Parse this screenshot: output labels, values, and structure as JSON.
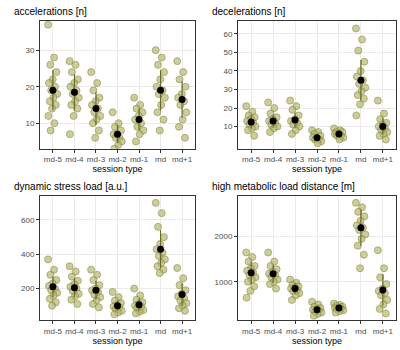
{
  "chart_data": [
    {
      "type": "scatter",
      "title": "accelerations [n]",
      "x_label": "session type",
      "categories": [
        "md-5",
        "md-4",
        "md-3",
        "md-2",
        "md-1",
        "md",
        "md+1"
      ],
      "values": [
        [
          37,
          28,
          26,
          24,
          22,
          21,
          20,
          19,
          18,
          17,
          16,
          15,
          14,
          12,
          10,
          8
        ],
        [
          27,
          26,
          24,
          22,
          21,
          20,
          19,
          18,
          17,
          16,
          15,
          14,
          12,
          7
        ],
        [
          24,
          21,
          19,
          17,
          16,
          15,
          14,
          13,
          12,
          11,
          10,
          8,
          6
        ],
        [
          13,
          10,
          9,
          8,
          7,
          7,
          6,
          6,
          5,
          4,
          3
        ],
        [
          17,
          15,
          14,
          13,
          12,
          11,
          10,
          9,
          8,
          7,
          5
        ],
        [
          30,
          28,
          26,
          24,
          22,
          20,
          19,
          18,
          17,
          15,
          13,
          11,
          8
        ],
        [
          27,
          24,
          22,
          20,
          18,
          17,
          16,
          15,
          13,
          11,
          9,
          6
        ]
      ],
      "mean": [
        19,
        18.5,
        14,
        7,
        11,
        19,
        16.5
      ],
      "sd": [
        5.5,
        5,
        4.5,
        2.5,
        3,
        5.5,
        5
      ],
      "color": "#b8b870",
      "ylim": [
        3,
        38
      ],
      "yticks": [
        10,
        20,
        30
      ],
      "grid": true
    },
    {
      "type": "scatter",
      "title": "decelerations [n]",
      "x_label": "session type",
      "categories": [
        "md-5",
        "md-4",
        "md-3",
        "md-2",
        "md-1",
        "md",
        "md+1"
      ],
      "values": [
        [
          21,
          18,
          16,
          15,
          14,
          13,
          12,
          11,
          10,
          9,
          8,
          5
        ],
        [
          23,
          20,
          17,
          15,
          14,
          13,
          12,
          11,
          10,
          9,
          7
        ],
        [
          24,
          21,
          19,
          16,
          14,
          13,
          12,
          11,
          10,
          8,
          6
        ],
        [
          8,
          7,
          6,
          5,
          4,
          4,
          3,
          3,
          2,
          1
        ],
        [
          9,
          8,
          7,
          7,
          6,
          6,
          5,
          5,
          4,
          3
        ],
        [
          63,
          57,
          51,
          45,
          40,
          37,
          35,
          33,
          31,
          29,
          27,
          25,
          22,
          16
        ],
        [
          24,
          17,
          14,
          12,
          11,
          10,
          9,
          8,
          7,
          6,
          5,
          3
        ]
      ],
      "mean": [
        12.5,
        13,
        13.5,
        4,
        6,
        35,
        10
      ],
      "sd": [
        3.5,
        3.5,
        4,
        1.8,
        1.5,
        11,
        4.5
      ],
      "color": "#b8b870",
      "ylim": [
        -2,
        67
      ],
      "yticks": [
        10,
        20,
        30,
        40,
        50,
        60
      ],
      "grid": true
    },
    {
      "type": "scatter",
      "title": "dynamic stress load [a.u.]",
      "x_label": "session type",
      "categories": [
        "md-5",
        "md-4",
        "md-3",
        "md-2",
        "md-1",
        "md",
        "md+1"
      ],
      "values": [
        [
          370,
          310,
          280,
          250,
          230,
          215,
          200,
          190,
          175,
          160,
          140,
          120,
          100
        ],
        [
          330,
          300,
          270,
          245,
          225,
          210,
          200,
          185,
          170,
          155,
          135,
          110
        ],
        [
          310,
          280,
          250,
          220,
          200,
          190,
          180,
          165,
          150,
          130,
          110,
          90
        ],
        [
          180,
          150,
          130,
          115,
          105,
          95,
          90,
          80,
          70,
          60,
          50
        ],
        [
          200,
          160,
          135,
          120,
          110,
          100,
          95,
          85,
          75,
          65,
          55
        ],
        [
          700,
          640,
          560,
          500,
          460,
          430,
          410,
          390,
          370,
          350,
          330,
          310,
          290
        ],
        [
          320,
          260,
          220,
          190,
          170,
          155,
          145,
          130,
          115,
          100,
          85,
          70
        ]
      ],
      "mean": [
        210,
        205,
        190,
        100,
        105,
        430,
        165
      ],
      "sd": [
        60,
        55,
        55,
        30,
        35,
        110,
        65
      ],
      "color": "#b8b870",
      "ylim": [
        15,
        740
      ],
      "yticks": [
        200,
        400,
        600
      ],
      "grid": true
    },
    {
      "type": "scatter",
      "title": "high metabolic load distance [m]",
      "x_label": "session type",
      "categories": [
        "md-5",
        "md-4",
        "md-3",
        "md-2",
        "md-1",
        "md",
        "md+1"
      ],
      "values": [
        [
          1650,
          1550,
          1450,
          1350,
          1300,
          1250,
          1200,
          1150,
          1100,
          1050,
          1000,
          900,
          800,
          650
        ],
        [
          1650,
          1450,
          1350,
          1280,
          1220,
          1180,
          1150,
          1100,
          1050,
          1000,
          950,
          850
        ],
        [
          1050,
          980,
          930,
          900,
          870,
          850,
          820,
          790,
          750,
          700,
          600
        ],
        [
          560,
          500,
          450,
          420,
          400,
          380,
          360,
          340,
          320,
          290,
          250
        ],
        [
          520,
          490,
          470,
          450,
          430,
          420,
          410,
          390,
          370,
          350,
          320
        ],
        [
          2750,
          2650,
          2550,
          2450,
          2350,
          2250,
          2200,
          2150,
          2050,
          1950,
          1800,
          1600,
          1300
        ],
        [
          1700,
          1300,
          1100,
          950,
          850,
          800,
          750,
          700,
          600,
          500,
          400,
          300
        ]
      ],
      "mean": [
        1200,
        1180,
        850,
        380,
        420,
        2200,
        820
      ],
      "sd": [
        250,
        200,
        120,
        80,
        60,
        400,
        350
      ],
      "color": "#b8b870",
      "ylim": [
        150,
        2900
      ],
      "yticks": [
        1000,
        2000
      ],
      "grid": true
    }
  ]
}
